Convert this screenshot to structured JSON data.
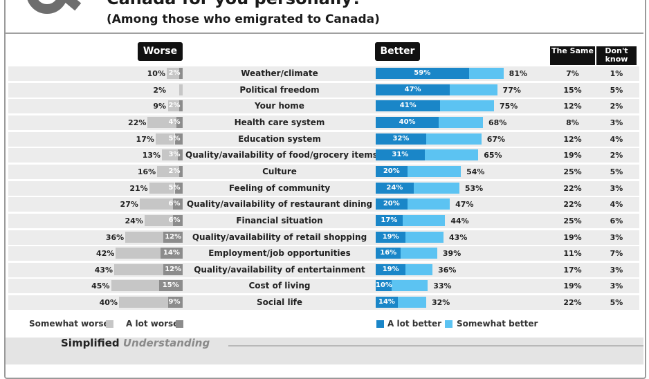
{
  "title": "Canada for you personally?",
  "subtitle": "(Among those who emigrated to Canada)",
  "headers": {
    "worse": "Worse",
    "better": "Better",
    "same": "The Same",
    "dont_know": "Don't know"
  },
  "legend": {
    "somewhat_worse": "Somewhat worse",
    "a_lot_worse": "A lot worse",
    "a_lot_better": "A lot better",
    "somewhat_better": "Somewhat better"
  },
  "brand": {
    "part1": "Simplified",
    "part2": "Understanding"
  },
  "colors": {
    "a_lot_better": "#1a86c8",
    "somewhat_better": "#5cc3f2",
    "a_lot_worse": "#8c8c8c",
    "somewhat_worse": "#c6c6c6",
    "row_bg": "#ececec"
  },
  "chart_data": {
    "type": "bar",
    "categories": [
      "Weather/climate",
      "Political freedom",
      "Your home",
      "Health care system",
      "Education system",
      "Quality/availability of food/grocery items",
      "Culture",
      "Feeling of community",
      "Quality/availability of restaurant dining",
      "Financial situation",
      "Quality/availability of retail shopping",
      "Employment/job opportunities",
      "Quality/availability of entertainment",
      "Cost of living",
      "Social life"
    ],
    "worse_total_labels": [
      "10%",
      "2%",
      "9%",
      "22%",
      "17%",
      "13%",
      "16%",
      "21%",
      "27%",
      "24%",
      "36%",
      "42%",
      "43%",
      "45%",
      "40%"
    ],
    "worse_total": [
      10,
      2,
      9,
      22,
      17,
      13,
      16,
      21,
      27,
      24,
      36,
      42,
      43,
      45,
      40
    ],
    "a_lot_worse_labels": [
      "2%",
      "",
      "2%",
      "4%",
      "5%",
      "3%",
      "2%",
      "5%",
      "6%",
      "6%",
      "12%",
      "14%",
      "12%",
      "15%",
      "9%"
    ],
    "a_lot_worse": [
      2,
      0,
      2,
      4,
      5,
      3,
      2,
      5,
      6,
      6,
      12,
      14,
      12,
      15,
      9
    ],
    "a_lot_better_labels": [
      "59%",
      "47%",
      "41%",
      "40%",
      "32%",
      "31%",
      "20%",
      "24%",
      "20%",
      "17%",
      "19%",
      "16%",
      "19%",
      "10%",
      "14%"
    ],
    "a_lot_better": [
      59,
      47,
      41,
      40,
      32,
      31,
      20,
      24,
      20,
      17,
      19,
      16,
      19,
      10,
      14
    ],
    "better_total_labels": [
      "81%",
      "77%",
      "75%",
      "68%",
      "67%",
      "65%",
      "54%",
      "53%",
      "47%",
      "44%",
      "43%",
      "39%",
      "36%",
      "33%",
      "32%"
    ],
    "better_total": [
      81,
      77,
      75,
      68,
      67,
      65,
      54,
      53,
      47,
      44,
      43,
      39,
      36,
      33,
      32
    ],
    "same_labels": [
      "7%",
      "15%",
      "12%",
      "8%",
      "12%",
      "19%",
      "25%",
      "22%",
      "22%",
      "25%",
      "19%",
      "11%",
      "17%",
      "19%",
      "22%"
    ],
    "dont_know_labels": [
      "1%",
      "5%",
      "2%",
      "3%",
      "4%",
      "2%",
      "5%",
      "3%",
      "4%",
      "6%",
      "3%",
      "7%",
      "3%",
      "3%",
      "5%"
    ]
  }
}
